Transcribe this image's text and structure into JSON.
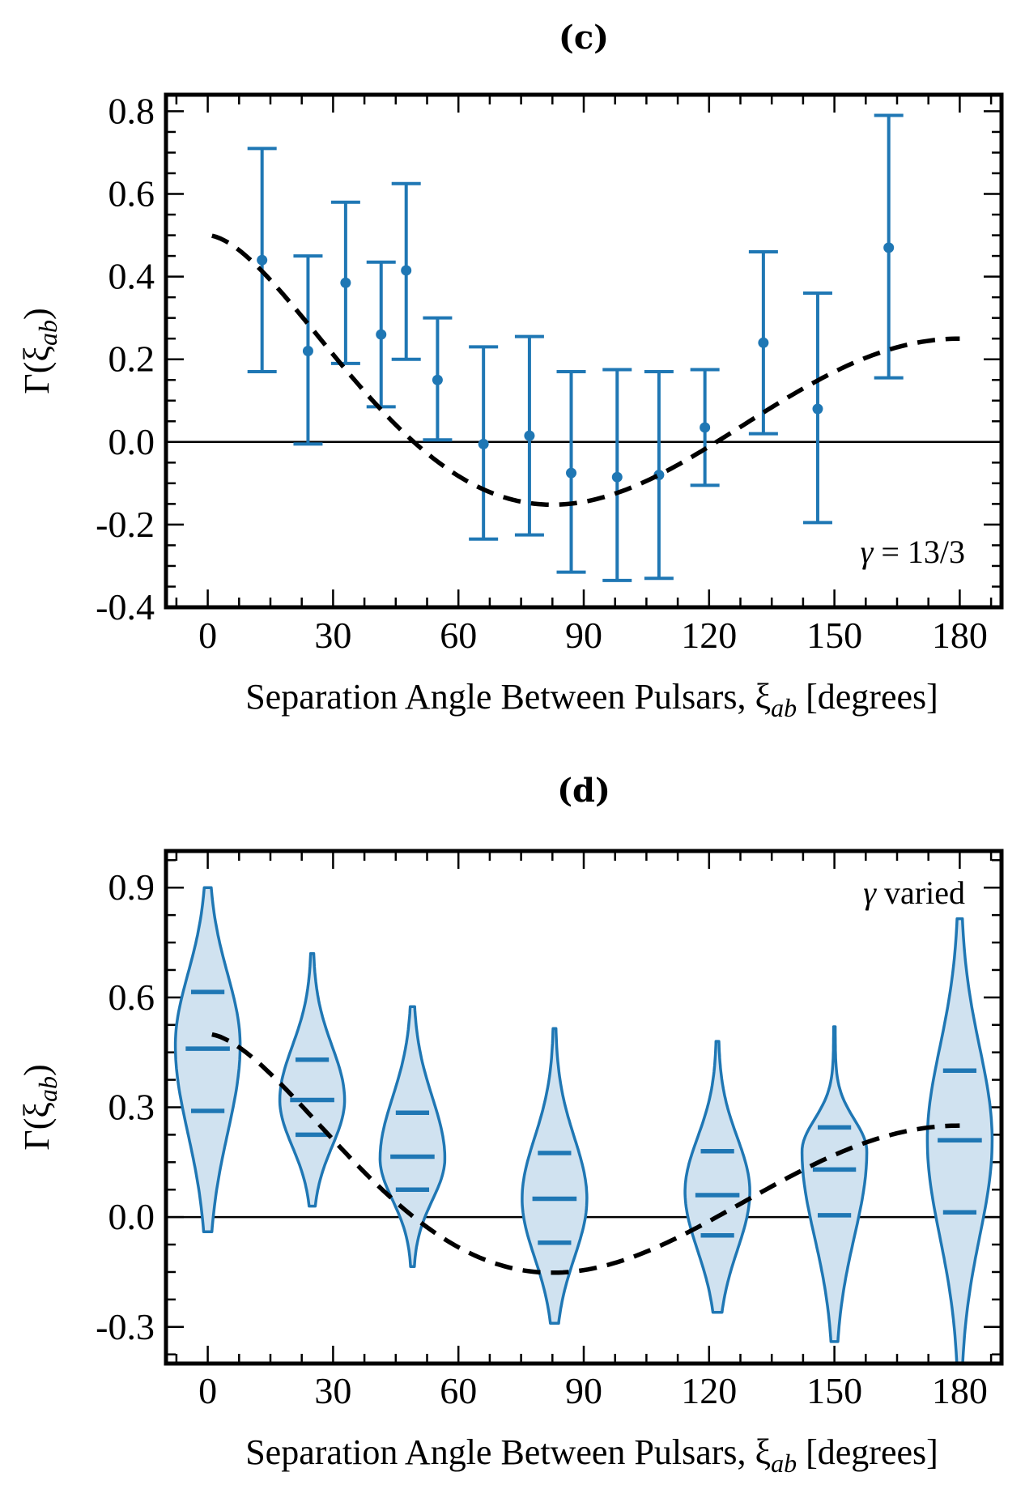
{
  "chart_data": [
    {
      "type": "scatter",
      "title": "(c)",
      "xlabel": {
        "text": "Separation Angle Between Pulsars, ξ",
        "sub": "ab",
        "suffix": " [degrees]"
      },
      "ylabel": {
        "text": "Γ(ξ",
        "sub": "ab",
        "suffix": ")"
      },
      "xlim": [
        -10,
        190
      ],
      "ylim": [
        -0.4,
        0.84
      ],
      "xticks": [
        0,
        30,
        60,
        90,
        120,
        150,
        180
      ],
      "xtick_labels": [
        "0",
        "30",
        "60",
        "90",
        "120",
        "150",
        "180"
      ],
      "yticks": [
        -0.4,
        -0.2,
        0.0,
        0.2,
        0.4,
        0.6,
        0.8
      ],
      "ytick_labels": [
        "-0.4",
        "-0.2",
        "0.0",
        "0.2",
        "0.4",
        "0.6",
        "0.8"
      ],
      "annotation": {
        "symbol": "γ",
        "text": " = 13/3"
      },
      "series_color": "#1f77b4",
      "reference_curve": "Hellings-Downs (dashed, black)",
      "points": [
        {
          "x": 13,
          "y": 0.44,
          "lo": 0.17,
          "hi": 0.71
        },
        {
          "x": 24,
          "y": 0.22,
          "lo": -0.005,
          "hi": 0.45
        },
        {
          "x": 33,
          "y": 0.385,
          "lo": 0.19,
          "hi": 0.58
        },
        {
          "x": 41.5,
          "y": 0.26,
          "lo": 0.085,
          "hi": 0.435
        },
        {
          "x": 47.5,
          "y": 0.415,
          "lo": 0.2,
          "hi": 0.625
        },
        {
          "x": 55,
          "y": 0.15,
          "lo": 0.005,
          "hi": 0.3
        },
        {
          "x": 66,
          "y": -0.005,
          "lo": -0.235,
          "hi": 0.23
        },
        {
          "x": 77,
          "y": 0.015,
          "lo": -0.225,
          "hi": 0.255
        },
        {
          "x": 87,
          "y": -0.075,
          "lo": -0.315,
          "hi": 0.17
        },
        {
          "x": 98,
          "y": -0.085,
          "lo": -0.335,
          "hi": 0.175
        },
        {
          "x": 108,
          "y": -0.08,
          "lo": -0.33,
          "hi": 0.17
        },
        {
          "x": 119,
          "y": 0.035,
          "lo": -0.105,
          "hi": 0.175
        },
        {
          "x": 133,
          "y": 0.24,
          "lo": 0.02,
          "hi": 0.46
        },
        {
          "x": 146,
          "y": 0.08,
          "lo": -0.195,
          "hi": 0.36
        },
        {
          "x": 163,
          "y": 0.47,
          "lo": 0.155,
          "hi": 0.79
        }
      ]
    },
    {
      "type": "violin",
      "title": "(d)",
      "xlabel": {
        "text": "Separation Angle Between Pulsars, ξ",
        "sub": "ab",
        "suffix": " [degrees]"
      },
      "ylabel": {
        "text": "Γ(ξ",
        "sub": "ab",
        "suffix": ")"
      },
      "xlim": [
        -10,
        190
      ],
      "ylim": [
        -0.4,
        1.0
      ],
      "xticks": [
        0,
        30,
        60,
        90,
        120,
        150,
        180
      ],
      "xtick_labels": [
        "0",
        "30",
        "60",
        "90",
        "120",
        "150",
        "180"
      ],
      "yticks": [
        -0.3,
        0.0,
        0.3,
        0.6,
        0.9
      ],
      "ytick_labels": [
        "-0.3",
        "0.0",
        "0.3",
        "0.6",
        "0.9"
      ],
      "annotation": {
        "symbol": "γ",
        "text": " varied"
      },
      "series_color": "#1f77b4",
      "fill_color": "#d0e2f0",
      "reference_curve": "Hellings-Downs (dashed, black)",
      "violins": [
        {
          "x": 0,
          "min": -0.04,
          "max": 0.9,
          "q1": 0.29,
          "median": 0.46,
          "q3": 0.615,
          "peak": 0.47
        },
        {
          "x": 25,
          "min": 0.03,
          "max": 0.72,
          "q1": 0.225,
          "median": 0.32,
          "q3": 0.43,
          "peak": 0.32
        },
        {
          "x": 49,
          "min": -0.135,
          "max": 0.575,
          "q1": 0.075,
          "median": 0.165,
          "q3": 0.285,
          "peak": 0.16
        },
        {
          "x": 83,
          "min": -0.29,
          "max": 0.515,
          "q1": -0.07,
          "median": 0.05,
          "q3": 0.175,
          "peak": 0.05
        },
        {
          "x": 122,
          "min": -0.26,
          "max": 0.48,
          "q1": -0.05,
          "median": 0.06,
          "q3": 0.18,
          "peak": 0.07
        },
        {
          "x": 150,
          "min": -0.34,
          "max": 0.52,
          "q1": 0.005,
          "median": 0.13,
          "q3": 0.245,
          "peak": 0.18
        },
        {
          "x": 180,
          "min": -0.4,
          "max": 0.815,
          "q1": 0.013,
          "median": 0.21,
          "q3": 0.4,
          "peak": 0.21
        }
      ]
    }
  ]
}
